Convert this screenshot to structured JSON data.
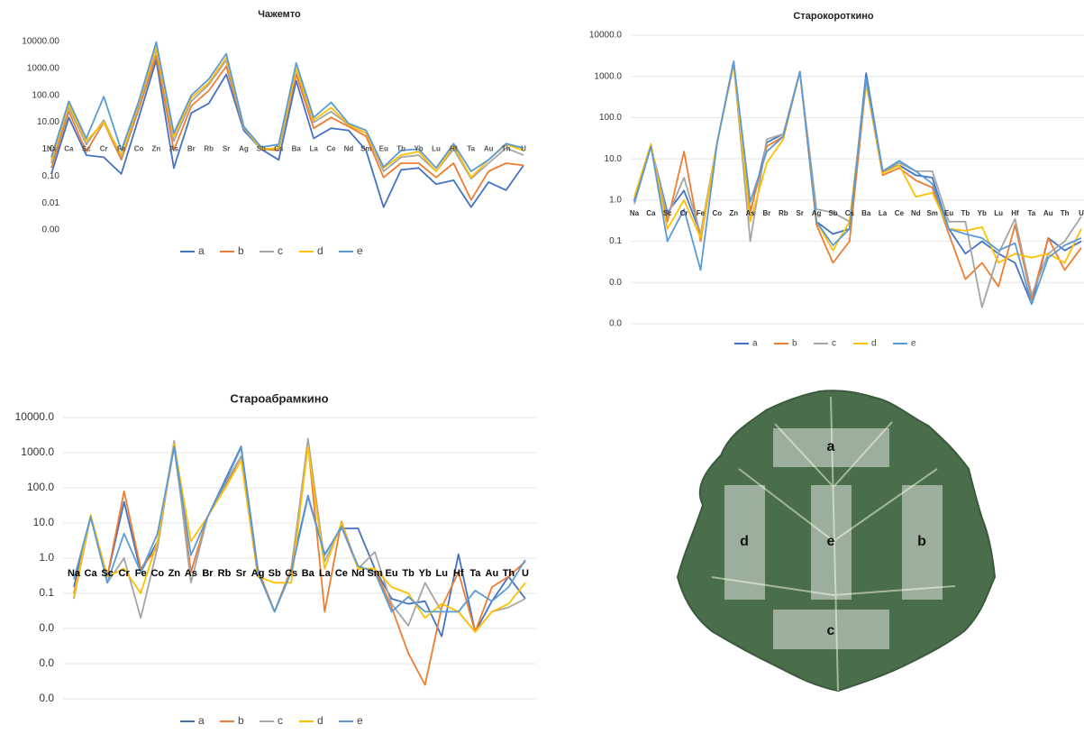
{
  "chart_data": [
    {
      "type": "line",
      "title": "Чажемто",
      "log_scale": true,
      "grid": false,
      "legend": "bottom",
      "categories": [
        "Na",
        "Ca",
        "Sc",
        "Cr",
        "Fe",
        "Co",
        "Zn",
        "As",
        "Br",
        "Rb",
        "Sr",
        "Ag",
        "Sb",
        "Cs",
        "Ba",
        "La",
        "Ce",
        "Nd",
        "Sm",
        "Eu",
        "Tb",
        "Yb",
        "Lu",
        "Hf",
        "Ta",
        "Au",
        "Th",
        "U"
      ],
      "ylim": [
        0.001,
        10000
      ],
      "yticks": [
        {
          "value": 10000,
          "label": "10000.00"
        },
        {
          "value": 1000,
          "label": "1000.00"
        },
        {
          "value": 100,
          "label": "100.00"
        },
        {
          "value": 10,
          "label": "10.00"
        },
        {
          "value": 1,
          "label": "1.00"
        },
        {
          "value": 0.1,
          "label": "0.10"
        },
        {
          "value": 0.01,
          "label": "0.01"
        },
        {
          "value": 0.001,
          "label": "0.00"
        }
      ],
      "series": [
        {
          "name": "a",
          "color": "#4472c4",
          "values": [
            0.12,
            15,
            0.6,
            0.5,
            0.12,
            15,
            2000,
            0.2,
            22,
            50,
            600,
            5,
            1,
            0.4,
            350,
            2.5,
            6,
            5,
            0.9,
            0.007,
            0.17,
            0.2,
            0.05,
            0.07,
            0.007,
            0.06,
            0.03,
            0.25
          ]
        },
        {
          "name": "b",
          "color": "#ed7d31",
          "values": [
            0.2,
            25,
            0.8,
            10,
            0.4,
            30,
            3000,
            0.9,
            40,
            150,
            1200,
            6,
            1,
            0.9,
            600,
            6,
            15,
            7,
            3,
            0.09,
            0.3,
            0.3,
            0.09,
            0.3,
            0.013,
            0.15,
            0.3,
            0.25
          ]
        },
        {
          "name": "c",
          "color": "#a5a5a5",
          "values": [
            0.3,
            35,
            1.5,
            12,
            0.5,
            40,
            5000,
            2,
            60,
            250,
            2000,
            6,
            1,
            1,
            900,
            10,
            25,
            8,
            4,
            0.15,
            0.5,
            0.6,
            0.15,
            1,
            0.08,
            0.3,
            1.1,
            0.6
          ]
        },
        {
          "name": "d",
          "color": "#ffc000",
          "values": [
            0.4,
            45,
            2,
            10,
            0.6,
            50,
            6000,
            3,
            80,
            300,
            2500,
            7,
            1,
            1.1,
            1000,
            12,
            35,
            8,
            4,
            0.2,
            0.6,
            0.8,
            0.15,
            1.3,
            0.09,
            0.4,
            1.5,
            0.9
          ]
        },
        {
          "name": "e",
          "color": "#5b9bd5",
          "values": [
            0.5,
            60,
            2.5,
            90,
            0.9,
            60,
            9500,
            4,
            100,
            400,
            3500,
            7,
            1.2,
            1.5,
            1600,
            15,
            55,
            9,
            5,
            0.22,
            0.9,
            1,
            0.2,
            1.6,
            0.15,
            0.4,
            1.6,
            1.1
          ]
        }
      ]
    },
    {
      "type": "line",
      "title": "Старокороткино",
      "log_scale": true,
      "grid": true,
      "legend": "bottom",
      "categories": [
        "Na",
        "Ca",
        "Sc",
        "Cr",
        "Fe",
        "Co",
        "Zn",
        "As",
        "Br",
        "Rb",
        "Sr",
        "Ag",
        "Sb",
        "Cs",
        "Ba",
        "La",
        "Ce",
        "Nd",
        "Sm",
        "Eu",
        "Tb",
        "Yb",
        "Lu",
        "Hf",
        "Ta",
        "Au",
        "Th",
        "U"
      ],
      "ylim": [
        0.001,
        10000
      ],
      "yticks": [
        {
          "value": 10000,
          "label": "10000.0"
        },
        {
          "value": 1000,
          "label": "1000.0"
        },
        {
          "value": 100,
          "label": "100.0"
        },
        {
          "value": 10,
          "label": "10.0"
        },
        {
          "value": 1,
          "label": "1.0"
        },
        {
          "value": 0.1,
          "label": "0.1"
        },
        {
          "value": 0.01,
          "label": "0.0"
        },
        {
          "value": 0.001,
          "label": "0.0"
        }
      ],
      "series": [
        {
          "name": "a",
          "color": "#4472c4",
          "values": [
            1,
            20,
            0.5,
            1.7,
            0.15,
            25,
            2300,
            0.5,
            25,
            40,
            1300,
            0.3,
            0.15,
            0.2,
            1200,
            5,
            7,
            4,
            3.5,
            0.2,
            0.05,
            0.1,
            0.05,
            0.03,
            0.003,
            0.12,
            0.06,
            0.1
          ]
        },
        {
          "name": "b",
          "color": "#ed7d31",
          "values": [
            0.9,
            20,
            0.3,
            15,
            0.1,
            25,
            2000,
            0.5,
            20,
            35,
            1300,
            0.25,
            0.03,
            0.1,
            700,
            4,
            6,
            3,
            2,
            0.15,
            0.012,
            0.03,
            0.008,
            0.25,
            0.004,
            0.12,
            0.02,
            0.07
          ]
        },
        {
          "name": "c",
          "color": "#a5a5a5",
          "values": [
            0.8,
            20,
            0.4,
            3.5,
            0.15,
            25,
            2000,
            0.1,
            30,
            40,
            1300,
            0.6,
            0.5,
            0.3,
            800,
            5,
            8,
            5,
            5,
            0.3,
            0.3,
            0.0025,
            0.05,
            0.35,
            0.005,
            0.05,
            0.1,
            0.4
          ]
        },
        {
          "name": "d",
          "color": "#ffc000",
          "values": [
            1.2,
            23,
            0.2,
            1,
            0.12,
            25,
            2000,
            0.3,
            8,
            30,
            1300,
            0.3,
            0.06,
            0.3,
            700,
            4.5,
            7,
            1.2,
            1.5,
            0.2,
            0.18,
            0.22,
            0.03,
            0.05,
            0.04,
            0.05,
            0.03,
            0.2
          ]
        },
        {
          "name": "e",
          "color": "#5b9bd5",
          "values": [
            0.9,
            20,
            0.1,
            0.6,
            0.02,
            25,
            2300,
            0.9,
            15,
            35,
            1300,
            0.3,
            0.08,
            0.2,
            900,
            5,
            9,
            5,
            2.5,
            0.2,
            0.15,
            0.12,
            0.06,
            0.09,
            0.003,
            0.04,
            0.08,
            0.12
          ]
        }
      ]
    },
    {
      "type": "line",
      "title": "Староабрамкино",
      "log_scale": true,
      "grid": true,
      "legend": "bottom",
      "categories": [
        "Na",
        "Ca",
        "Sc",
        "Cr",
        "Fe",
        "Co",
        "Zn",
        "As",
        "Br",
        "Rb",
        "Sr",
        "Ag",
        "Sb",
        "Cs",
        "Ba",
        "La",
        "Ce",
        "Nd",
        "Sm",
        "Eu",
        "Tb",
        "Yb",
        "Lu",
        "Hf",
        "Ta",
        "Au",
        "Th",
        "U"
      ],
      "ylim": [
        0.0001,
        10000
      ],
      "yticks": [
        {
          "value": 10000,
          "label": "10000.0"
        },
        {
          "value": 1000,
          "label": "1000.0"
        },
        {
          "value": 100,
          "label": "100.0"
        },
        {
          "value": 10,
          "label": "10.0"
        },
        {
          "value": 1,
          "label": "1.0"
        },
        {
          "value": 0.1,
          "label": "0.1"
        },
        {
          "value": 0.01,
          "label": "0.0"
        },
        {
          "value": 0.001,
          "label": "0.0"
        },
        {
          "value": 0.0001,
          "label": "0.0"
        }
      ],
      "series": [
        {
          "name": "a",
          "color": "#4472c4",
          "values": [
            0.15,
            15,
            0.3,
            40,
            0.4,
            3,
            1500,
            0.4,
            15,
            150,
            1500,
            0.5,
            0.03,
            0.5,
            60,
            1.3,
            7,
            7,
            0.5,
            0.07,
            0.05,
            0.06,
            0.006,
            1.3,
            0.008,
            0.06,
            0.3,
            0.07
          ]
        },
        {
          "name": "b",
          "color": "#ed7d31",
          "values": [
            0.1,
            15,
            0.3,
            80,
            0.5,
            2,
            2000,
            0.4,
            15,
            100,
            800,
            0.5,
            0.03,
            0.5,
            1800,
            0.03,
            11,
            0.5,
            0.5,
            0.04,
            0.002,
            0.00025,
            0.04,
            0.4,
            0.008,
            0.15,
            0.3,
            0.8
          ]
        },
        {
          "name": "c",
          "color": "#a5a5a5",
          "values": [
            0.07,
            15,
            0.2,
            1,
            0.02,
            2,
            2200,
            0.2,
            15,
            120,
            800,
            0.4,
            0.03,
            0.4,
            2500,
            0.8,
            8,
            0.5,
            1.5,
            0.05,
            0.012,
            0.2,
            0.03,
            0.03,
            0.008,
            0.03,
            0.04,
            0.07
          ]
        },
        {
          "name": "d",
          "color": "#ffc000",
          "values": [
            0.08,
            17,
            0.3,
            0.5,
            0.1,
            3,
            1800,
            3,
            15,
            90,
            600,
            0.3,
            0.2,
            0.2,
            1500,
            0.5,
            10,
            0.5,
            0.5,
            0.15,
            0.1,
            0.02,
            0.05,
            0.03,
            0.008,
            0.03,
            0.05,
            0.2
          ]
        },
        {
          "name": "e",
          "color": "#5b9bd5",
          "values": [
            0.25,
            15,
            0.2,
            5,
            0.4,
            5,
            1500,
            1.2,
            15,
            130,
            1400,
            0.4,
            0.03,
            0.4,
            55,
            1.2,
            8,
            0.6,
            0.4,
            0.03,
            0.08,
            0.03,
            0.03,
            0.03,
            0.12,
            0.06,
            0.15,
            0.9
          ]
        }
      ]
    }
  ],
  "leaf_zones": [
    "a",
    "d",
    "e",
    "b",
    "c"
  ]
}
